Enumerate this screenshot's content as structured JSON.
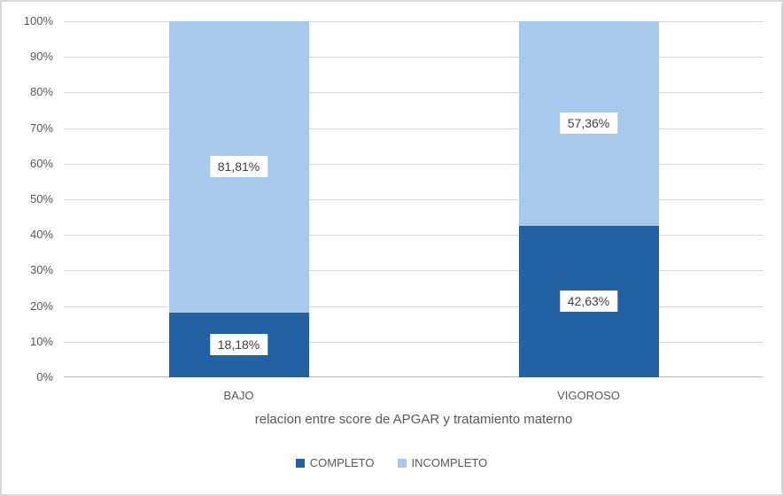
{
  "chart_data": {
    "type": "bar",
    "subtype": "stacked-100",
    "categories": [
      "BAJO",
      "VIGOROSO"
    ],
    "series": [
      {
        "name": "COMPLETO",
        "color": "#2262A3",
        "values": [
          18.18,
          42.63
        ],
        "labels": [
          "18,18%",
          "42,63%"
        ]
      },
      {
        "name": "INCOMPLETO",
        "color": "#A6C9EC",
        "values": [
          81.81,
          57.36
        ],
        "labels": [
          "81,81%",
          "57,36%"
        ]
      }
    ],
    "title": "",
    "xlabel": "relacion entre score de APGAR y tratamiento materno",
    "ylabel": "",
    "y_ticks": [
      "0%",
      "10%",
      "20%",
      "30%",
      "40%",
      "50%",
      "60%",
      "70%",
      "80%",
      "90%",
      "100%"
    ],
    "ylim": [
      0,
      100
    ],
    "grid": true,
    "legend_position": "bottom"
  },
  "colors": {
    "gridline": "#D9D9D9",
    "axis_line": "#BFBFBF",
    "tick_text": "#595959",
    "data_label_text": "#3F3F3F",
    "data_label_bg": "#ffffff",
    "frame_border": "#D9D9D9"
  }
}
